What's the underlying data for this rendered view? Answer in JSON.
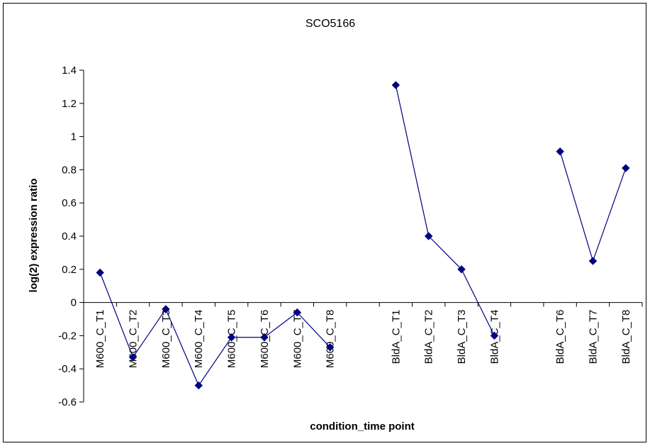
{
  "chart_data": {
    "type": "line",
    "title": "SCO5166",
    "xlabel": "condition_time point",
    "ylabel": "log(2) expression ratio",
    "ylim": [
      -0.6,
      1.4
    ],
    "yticks": [
      "-0.6",
      "-0.4",
      "-0.2",
      "0",
      "0.2",
      "0.4",
      "0.6",
      "0.8",
      "1",
      "1.2",
      "1.4"
    ],
    "grid": false,
    "legend": "none",
    "categories": [
      "M600_C_T1",
      "M600_C_T2",
      "M600_C_T3",
      "M600_C_T4",
      "M600_C_T5",
      "M600_C_T6",
      "M600_C_T7",
      "M600_C_T8",
      "",
      "BldA_C_T1",
      "BldA_C_T2",
      "BldA_C_T3",
      "BldA_C_T4",
      "",
      "BldA_C_T6",
      "BldA_C_T7",
      "BldA_C_T8"
    ],
    "values": [
      0.18,
      -0.33,
      -0.04,
      -0.5,
      -0.21,
      -0.21,
      -0.06,
      -0.27,
      null,
      1.31,
      0.4,
      0.2,
      -0.2,
      null,
      0.91,
      0.25,
      0.81
    ],
    "series_color": "#000080"
  }
}
